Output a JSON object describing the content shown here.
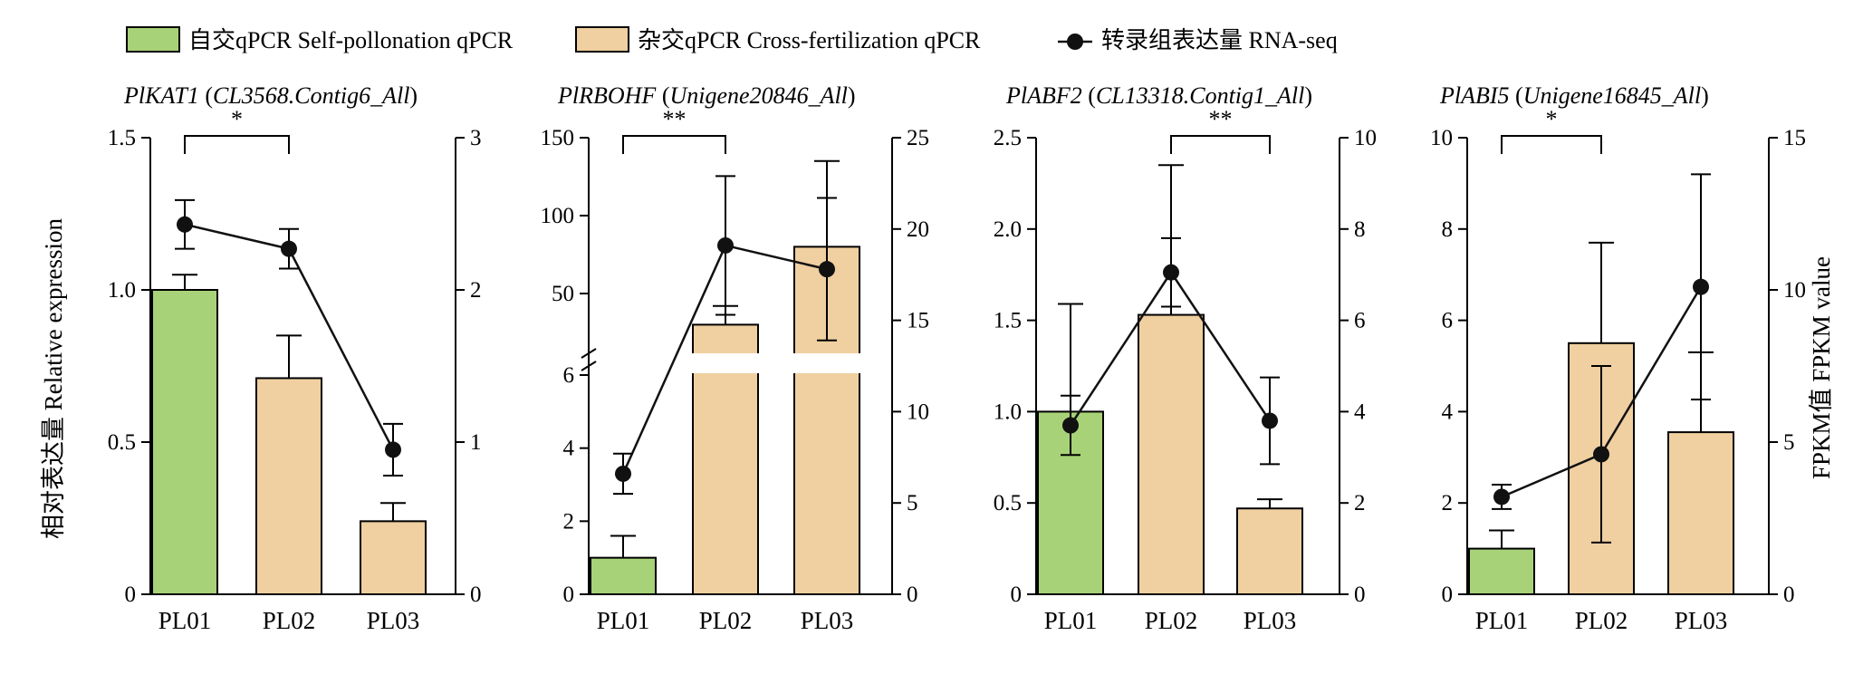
{
  "legend": {
    "self": "自交qPCR Self-pollonation qPCR",
    "cross": "杂交qPCR Cross-fertilization qPCR",
    "rnaseq": "转录组表达量 RNA-seq"
  },
  "y_label_left": "相对表达量 Relative expression",
  "y_label_right": "FPKM值 FPKM value",
  "colors": {
    "self": "#a8d277",
    "cross": "#f0cfa0",
    "line": "#111111",
    "break_bar": "#ffffff"
  },
  "chart_data": [
    {
      "type": "bar",
      "gene": "PlKAT1",
      "contig": "CL3568.Contig6_All",
      "categories": [
        "PL01",
        "PL02",
        "PL03"
      ],
      "ylim": [
        0,
        1.5
      ],
      "yticks": [
        "0",
        "0.5",
        "1.0",
        "1.5"
      ],
      "yticks_values": [
        0,
        0.5,
        1.0,
        1.5
      ],
      "y2lim": [
        0,
        3
      ],
      "y2ticks": [
        "0",
        "1",
        "2",
        "3"
      ],
      "y2ticks_values": [
        0,
        1,
        2,
        3
      ],
      "bars": [
        {
          "category": "PL01",
          "value": 1.0,
          "error": 0.05,
          "group": "self"
        },
        {
          "category": "PL02",
          "value": 0.71,
          "error": 0.14,
          "group": "cross"
        },
        {
          "category": "PL03",
          "value": 0.24,
          "error": 0.06,
          "group": "cross"
        }
      ],
      "line": [
        {
          "category": "PL01",
          "value": 2.43,
          "error": 0.16
        },
        {
          "category": "PL02",
          "value": 2.27,
          "error": 0.13
        },
        {
          "category": "PL03",
          "value": 0.95,
          "error": 0.17
        }
      ],
      "significance": {
        "from": "PL01",
        "to": "PL02",
        "label": "*"
      }
    },
    {
      "type": "bar",
      "gene": "PlRBOHF",
      "contig": "Unigene20846_All",
      "categories": [
        "PL01",
        "PL02",
        "PL03"
      ],
      "broken_axis": true,
      "lower_ylim": [
        0,
        6
      ],
      "upper_ylim": [
        0,
        150
      ],
      "yticks": [
        "0",
        "2",
        "4",
        "6",
        "50",
        "100",
        "150"
      ],
      "y2lim": [
        0,
        25
      ],
      "y2ticks": [
        "0",
        "5",
        "10",
        "15",
        "20",
        "25"
      ],
      "y2ticks_values": [
        0,
        5,
        10,
        15,
        20,
        25
      ],
      "bars": [
        {
          "category": "PL01",
          "value": 1.0,
          "error": 0.6,
          "group": "self"
        },
        {
          "category": "PL02",
          "value": 30,
          "error": 12,
          "group": "cross"
        },
        {
          "category": "PL03",
          "value": 80,
          "error": 55,
          "group": "cross"
        }
      ],
      "line": [
        {
          "category": "PL01",
          "value": 6.6,
          "error": 1.1
        },
        {
          "category": "PL02",
          "value": 19.1,
          "error": 3.8
        },
        {
          "category": "PL03",
          "value": 17.8,
          "error": 3.9
        }
      ],
      "significance": {
        "from": "PL01",
        "to": "PL02",
        "label": "**"
      }
    },
    {
      "type": "bar",
      "gene": "PlABF2",
      "contig": "CL13318.Contig1_All",
      "categories": [
        "PL01",
        "PL02",
        "PL03"
      ],
      "ylim": [
        0,
        2.5
      ],
      "yticks": [
        "0",
        "0.5",
        "1.0",
        "1.5",
        "2.0",
        "2.5"
      ],
      "yticks_values": [
        0,
        0.5,
        1.0,
        1.5,
        2.0,
        2.5
      ],
      "y2lim": [
        0,
        10
      ],
      "y2ticks": [
        "0",
        "2",
        "4",
        "6",
        "8",
        "10"
      ],
      "y2ticks_values": [
        0,
        2,
        4,
        6,
        8,
        10
      ],
      "bars": [
        {
          "category": "PL01",
          "value": 1.0,
          "error": 0.59,
          "group": "self"
        },
        {
          "category": "PL02",
          "value": 1.53,
          "error": 0.82,
          "group": "cross"
        },
        {
          "category": "PL03",
          "value": 0.47,
          "error": 0.05,
          "group": "cross"
        }
      ],
      "line": [
        {
          "category": "PL01",
          "value": 3.7,
          "error": 0.65
        },
        {
          "category": "PL02",
          "value": 7.05,
          "error": 0.75
        },
        {
          "category": "PL03",
          "value": 3.8,
          "error": 0.95
        }
      ],
      "significance": {
        "from": "PL02",
        "to": "PL03",
        "label": "**"
      }
    },
    {
      "type": "bar",
      "gene": "PlABI5",
      "contig": "Unigene16845_All",
      "categories": [
        "PL01",
        "PL02",
        "PL03"
      ],
      "ylim": [
        0,
        10
      ],
      "yticks": [
        "0",
        "2",
        "4",
        "6",
        "8",
        "10"
      ],
      "yticks_values": [
        0,
        2,
        4,
        6,
        8,
        10
      ],
      "y2lim": [
        0,
        15
      ],
      "y2ticks": [
        "0",
        "5",
        "10",
        "15"
      ],
      "y2ticks_values": [
        0,
        5,
        10,
        15
      ],
      "bars": [
        {
          "category": "PL01",
          "value": 1.0,
          "error": 0.4,
          "group": "self"
        },
        {
          "category": "PL02",
          "value": 5.5,
          "error": 2.2,
          "group": "cross"
        },
        {
          "category": "PL03",
          "value": 3.55,
          "error": 1.75,
          "group": "cross"
        }
      ],
      "line": [
        {
          "category": "PL01",
          "value": 3.2,
          "error": 0.4
        },
        {
          "category": "PL02",
          "value": 4.6,
          "error": 2.9
        },
        {
          "category": "PL03",
          "value": 10.1,
          "error": 3.7
        }
      ],
      "significance": {
        "from": "PL01",
        "to": "PL02",
        "label": "*"
      }
    }
  ]
}
